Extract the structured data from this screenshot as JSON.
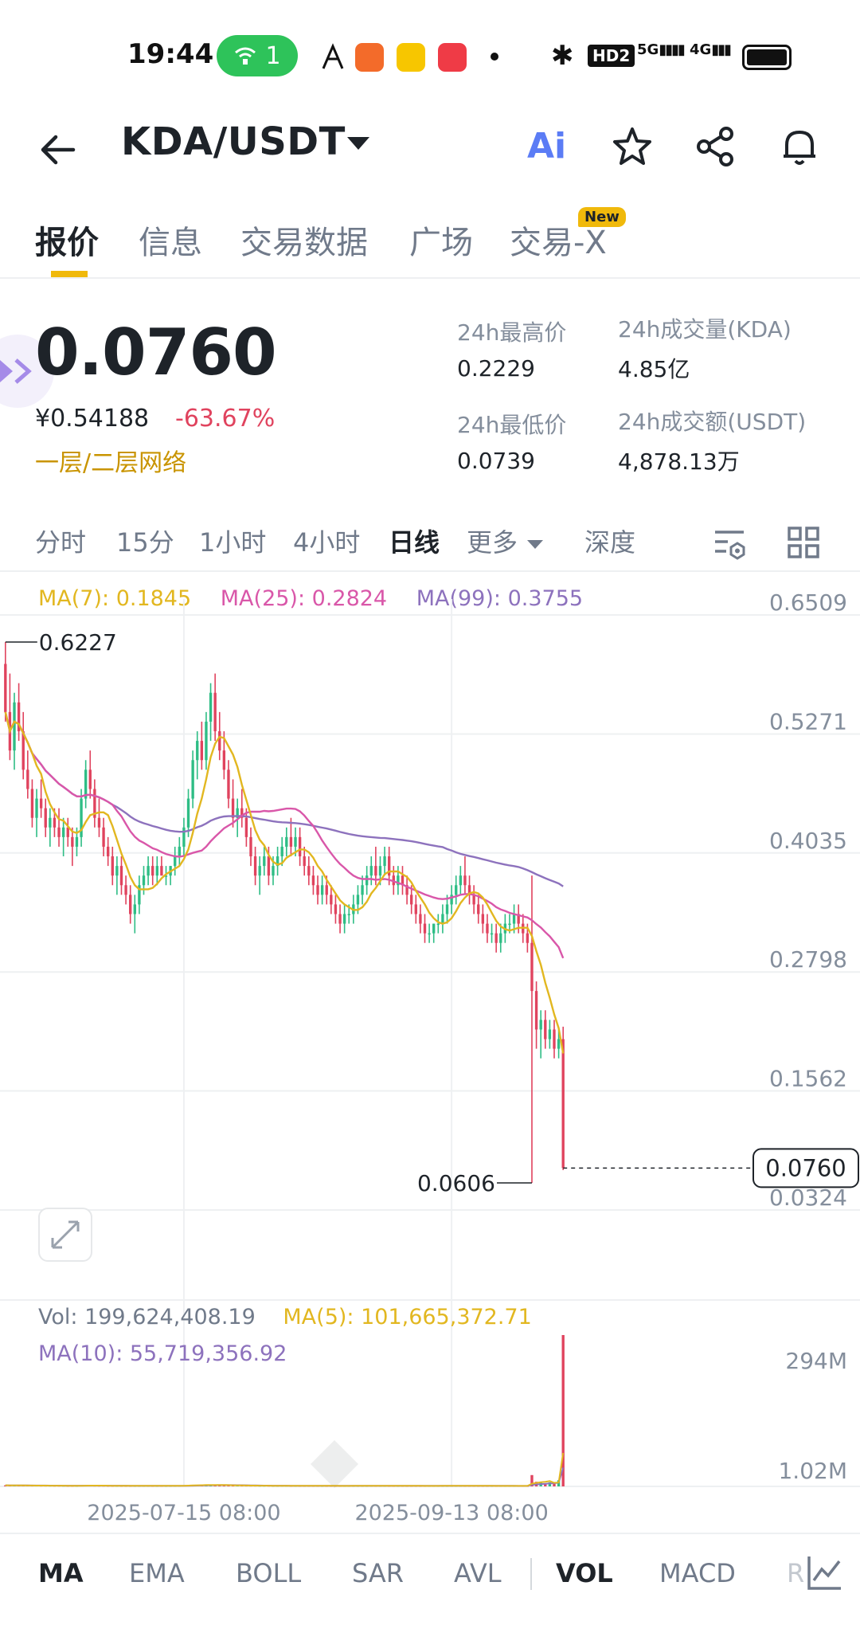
{
  "status_bar": {
    "time": "19:44",
    "hotspot_count": "1",
    "app_icons": [
      "kuaishou",
      "video",
      "xiaohongshu"
    ],
    "hd_label": "HD2",
    "signal_5g": "5G",
    "signal_4g": "4G"
  },
  "header": {
    "pair": "KDA/USDT",
    "ai_label": "Ai",
    "icons": [
      "back-arrow-icon",
      "star-icon",
      "share-icon",
      "bell-icon"
    ]
  },
  "tabs": {
    "items": [
      "报价",
      "信息",
      "交易数据",
      "广场",
      "交易-X"
    ],
    "active": "报价",
    "new_badge": "New"
  },
  "ticker": {
    "price": "0.0760",
    "cny_price": "¥0.54188",
    "change": "-63.67%",
    "tag": "一层/二层网络",
    "high_label": "24h最高价",
    "high_value": "0.2229",
    "low_label": "24h最低价",
    "low_value": "0.0739",
    "vol_base_label": "24h成交量(KDA)",
    "vol_base_value": "4.85亿",
    "vol_quote_label": "24h成交额(USDT)",
    "vol_quote_value": "4,878.13万"
  },
  "intervals": {
    "items": [
      "分时",
      "15分",
      "1小时",
      "4小时",
      "日线",
      "更多",
      "深度"
    ],
    "active": "日线"
  },
  "colors": {
    "up": "#2ebd85",
    "down": "#e0435e",
    "ma7": "#e2b720",
    "ma25": "#d957a9",
    "ma99": "#8d72bd",
    "accent": "#f0b90b"
  },
  "chart_legend": {
    "ma7": "MA(7): 0.1845",
    "ma25": "MA(25): 0.2824",
    "ma99": "MA(99): 0.3755",
    "vol": "Vol: 199,624,408.19",
    "vol_ma5": "MA(5): 101,665,372.71",
    "vol_ma10": "MA(10): 55,719,356.92"
  },
  "indicator_bar": {
    "items": [
      "MA",
      "EMA",
      "BOLL",
      "SAR",
      "AVL",
      "VOL",
      "MACD",
      "R"
    ],
    "active_main": "MA",
    "active_sub": "VOL"
  },
  "chart_data": {
    "type": "candlestick",
    "interval": "日线",
    "y_ticks": [
      "0.6509",
      "0.5271",
      "0.4035",
      "0.2798",
      "0.1562",
      "0.0324"
    ],
    "ylim": [
      0.0324,
      0.6509
    ],
    "x_ticks": [
      "2025-07-15 08:00",
      "2025-09-13 08:00"
    ],
    "x_tick_index": [
      40,
      100
    ],
    "high_label": "0.6227",
    "low_label": "0.0606",
    "last_price": "0.0760",
    "vol_ticks": [
      "294M",
      "1.02M"
    ],
    "vol_ylim": [
      0,
      294
    ],
    "candles": [
      [
        0.6,
        0.6227,
        0.54,
        0.55
      ],
      [
        0.55,
        0.59,
        0.5,
        0.51
      ],
      [
        0.51,
        0.57,
        0.49,
        0.56
      ],
      [
        0.56,
        0.58,
        0.52,
        0.53
      ],
      [
        0.53,
        0.55,
        0.48,
        0.49
      ],
      [
        0.49,
        0.51,
        0.46,
        0.47
      ],
      [
        0.47,
        0.48,
        0.43,
        0.44
      ],
      [
        0.44,
        0.47,
        0.42,
        0.46
      ],
      [
        0.46,
        0.48,
        0.44,
        0.45
      ],
      [
        0.45,
        0.46,
        0.42,
        0.43
      ],
      [
        0.43,
        0.45,
        0.41,
        0.44
      ],
      [
        0.44,
        0.45,
        0.42,
        0.43
      ],
      [
        0.43,
        0.45,
        0.41,
        0.42
      ],
      [
        0.42,
        0.44,
        0.4,
        0.43
      ],
      [
        0.43,
        0.44,
        0.41,
        0.42
      ],
      [
        0.42,
        0.43,
        0.39,
        0.41
      ],
      [
        0.41,
        0.43,
        0.4,
        0.42
      ],
      [
        0.42,
        0.47,
        0.41,
        0.46
      ],
      [
        0.46,
        0.5,
        0.45,
        0.49
      ],
      [
        0.49,
        0.51,
        0.46,
        0.47
      ],
      [
        0.47,
        0.48,
        0.43,
        0.44
      ],
      [
        0.44,
        0.46,
        0.42,
        0.43
      ],
      [
        0.43,
        0.44,
        0.4,
        0.41
      ],
      [
        0.41,
        0.42,
        0.39,
        0.4
      ],
      [
        0.4,
        0.41,
        0.37,
        0.38
      ],
      [
        0.38,
        0.4,
        0.36,
        0.39
      ],
      [
        0.39,
        0.4,
        0.36,
        0.37
      ],
      [
        0.37,
        0.38,
        0.35,
        0.36
      ],
      [
        0.36,
        0.37,
        0.33,
        0.34
      ],
      [
        0.34,
        0.36,
        0.32,
        0.35
      ],
      [
        0.35,
        0.38,
        0.34,
        0.37
      ],
      [
        0.37,
        0.39,
        0.36,
        0.38
      ],
      [
        0.38,
        0.4,
        0.37,
        0.39
      ],
      [
        0.39,
        0.4,
        0.37,
        0.38
      ],
      [
        0.38,
        0.4,
        0.37,
        0.39
      ],
      [
        0.39,
        0.4,
        0.38,
        0.38
      ],
      [
        0.38,
        0.39,
        0.37,
        0.38
      ],
      [
        0.38,
        0.39,
        0.37,
        0.39
      ],
      [
        0.39,
        0.41,
        0.38,
        0.4
      ],
      [
        0.4,
        0.42,
        0.39,
        0.41
      ],
      [
        0.41,
        0.44,
        0.4,
        0.43
      ],
      [
        0.43,
        0.47,
        0.42,
        0.46
      ],
      [
        0.46,
        0.51,
        0.45,
        0.5
      ],
      [
        0.5,
        0.53,
        0.48,
        0.52
      ],
      [
        0.52,
        0.54,
        0.49,
        0.5
      ],
      [
        0.5,
        0.55,
        0.49,
        0.54
      ],
      [
        0.54,
        0.58,
        0.52,
        0.57
      ],
      [
        0.57,
        0.59,
        0.52,
        0.53
      ],
      [
        0.53,
        0.55,
        0.5,
        0.51
      ],
      [
        0.51,
        0.53,
        0.48,
        0.49
      ],
      [
        0.49,
        0.5,
        0.45,
        0.46
      ],
      [
        0.46,
        0.48,
        0.43,
        0.44
      ],
      [
        0.44,
        0.46,
        0.42,
        0.45
      ],
      [
        0.45,
        0.47,
        0.43,
        0.44
      ],
      [
        0.44,
        0.45,
        0.41,
        0.42
      ],
      [
        0.42,
        0.43,
        0.39,
        0.4
      ],
      [
        0.4,
        0.41,
        0.37,
        0.38
      ],
      [
        0.38,
        0.4,
        0.36,
        0.39
      ],
      [
        0.39,
        0.41,
        0.38,
        0.4
      ],
      [
        0.4,
        0.41,
        0.37,
        0.38
      ],
      [
        0.38,
        0.4,
        0.37,
        0.39
      ],
      [
        0.39,
        0.41,
        0.38,
        0.4
      ],
      [
        0.4,
        0.42,
        0.39,
        0.41
      ],
      [
        0.41,
        0.43,
        0.4,
        0.42
      ],
      [
        0.42,
        0.44,
        0.4,
        0.41
      ],
      [
        0.41,
        0.43,
        0.4,
        0.42
      ],
      [
        0.42,
        0.43,
        0.39,
        0.4
      ],
      [
        0.4,
        0.41,
        0.38,
        0.39
      ],
      [
        0.39,
        0.4,
        0.37,
        0.38
      ],
      [
        0.38,
        0.39,
        0.36,
        0.37
      ],
      [
        0.37,
        0.38,
        0.35,
        0.36
      ],
      [
        0.36,
        0.38,
        0.35,
        0.37
      ],
      [
        0.37,
        0.38,
        0.35,
        0.36
      ],
      [
        0.36,
        0.37,
        0.34,
        0.35
      ],
      [
        0.35,
        0.36,
        0.33,
        0.34
      ],
      [
        0.34,
        0.35,
        0.32,
        0.33
      ],
      [
        0.33,
        0.35,
        0.32,
        0.34
      ],
      [
        0.34,
        0.35,
        0.33,
        0.34
      ],
      [
        0.34,
        0.36,
        0.33,
        0.35
      ],
      [
        0.35,
        0.37,
        0.34,
        0.36
      ],
      [
        0.36,
        0.38,
        0.35,
        0.37
      ],
      [
        0.37,
        0.39,
        0.36,
        0.38
      ],
      [
        0.38,
        0.4,
        0.37,
        0.39
      ],
      [
        0.39,
        0.41,
        0.37,
        0.38
      ],
      [
        0.38,
        0.4,
        0.37,
        0.39
      ],
      [
        0.39,
        0.41,
        0.38,
        0.4
      ],
      [
        0.4,
        0.41,
        0.37,
        0.38
      ],
      [
        0.38,
        0.39,
        0.36,
        0.37
      ],
      [
        0.37,
        0.39,
        0.36,
        0.38
      ],
      [
        0.38,
        0.39,
        0.36,
        0.37
      ],
      [
        0.37,
        0.38,
        0.35,
        0.36
      ],
      [
        0.36,
        0.37,
        0.34,
        0.35
      ],
      [
        0.35,
        0.36,
        0.33,
        0.34
      ],
      [
        0.34,
        0.35,
        0.32,
        0.33
      ],
      [
        0.33,
        0.34,
        0.31,
        0.32
      ],
      [
        0.32,
        0.33,
        0.31,
        0.32
      ],
      [
        0.32,
        0.33,
        0.31,
        0.33
      ],
      [
        0.33,
        0.34,
        0.32,
        0.33
      ],
      [
        0.33,
        0.35,
        0.32,
        0.34
      ],
      [
        0.34,
        0.36,
        0.33,
        0.35
      ],
      [
        0.35,
        0.37,
        0.34,
        0.36
      ],
      [
        0.36,
        0.38,
        0.35,
        0.37
      ],
      [
        0.37,
        0.39,
        0.36,
        0.38
      ],
      [
        0.38,
        0.4,
        0.36,
        0.37
      ],
      [
        0.37,
        0.38,
        0.35,
        0.36
      ],
      [
        0.36,
        0.37,
        0.34,
        0.35
      ],
      [
        0.35,
        0.36,
        0.33,
        0.34
      ],
      [
        0.34,
        0.35,
        0.32,
        0.33
      ],
      [
        0.33,
        0.34,
        0.31,
        0.32
      ],
      [
        0.32,
        0.33,
        0.31,
        0.32
      ],
      [
        0.32,
        0.33,
        0.3,
        0.31
      ],
      [
        0.31,
        0.33,
        0.3,
        0.32
      ],
      [
        0.32,
        0.34,
        0.31,
        0.33
      ],
      [
        0.33,
        0.34,
        0.32,
        0.33
      ],
      [
        0.33,
        0.35,
        0.32,
        0.34
      ],
      [
        0.34,
        0.35,
        0.32,
        0.33
      ],
      [
        0.33,
        0.34,
        0.31,
        0.32
      ],
      [
        0.32,
        0.33,
        0.3,
        0.31
      ],
      [
        0.31,
        0.38,
        0.0606,
        0.26
      ],
      [
        0.26,
        0.27,
        0.2,
        0.22
      ],
      [
        0.22,
        0.24,
        0.19,
        0.23
      ],
      [
        0.23,
        0.24,
        0.2,
        0.21
      ],
      [
        0.21,
        0.23,
        0.2,
        0.22
      ],
      [
        0.22,
        0.23,
        0.19,
        0.2
      ],
      [
        0.2,
        0.22,
        0.19,
        0.21
      ],
      [
        0.21,
        0.2229,
        0.0739,
        0.076
      ]
    ],
    "volumes": [
      2.1,
      2.0,
      1.8,
      1.7,
      1.6,
      1.6,
      1.5,
      1.5,
      1.4,
      1.4,
      1.4,
      1.3,
      1.3,
      1.3,
      1.2,
      1.2,
      1.2,
      1.6,
      1.9,
      1.5,
      1.4,
      1.3,
      1.3,
      1.2,
      1.2,
      1.2,
      1.1,
      1.1,
      1.1,
      1.1,
      1.1,
      1.2,
      1.2,
      1.1,
      1.1,
      1.1,
      1.0,
      1.1,
      1.2,
      1.3,
      1.8,
      2.2,
      2.6,
      2.8,
      2.4,
      2.9,
      3.1,
      2.7,
      2.3,
      2.1,
      1.9,
      1.8,
      1.7,
      1.6,
      1.5,
      1.4,
      1.4,
      1.3,
      1.3,
      1.3,
      1.2,
      1.2,
      1.3,
      1.3,
      1.2,
      1.2,
      1.1,
      1.1,
      1.1,
      1.1,
      1.1,
      1.0,
      1.0,
      1.0,
      1.0,
      1.0,
      1.0,
      1.0,
      1.1,
      1.1,
      1.1,
      1.1,
      1.2,
      1.2,
      1.2,
      1.2,
      1.1,
      1.1,
      1.1,
      1.1,
      1.0,
      1.0,
      1.0,
      1.0,
      1.0,
      1.0,
      1.0,
      1.0,
      1.1,
      1.1,
      1.1,
      1.2,
      1.2,
      1.1,
      1.1,
      1.1,
      1.0,
      1.0,
      1.0,
      1.0,
      1.0,
      1.0,
      1.0,
      1.0,
      1.0,
      1.0,
      1.0,
      1.0,
      22,
      9,
      7,
      6,
      8,
      5,
      12,
      294
    ]
  }
}
